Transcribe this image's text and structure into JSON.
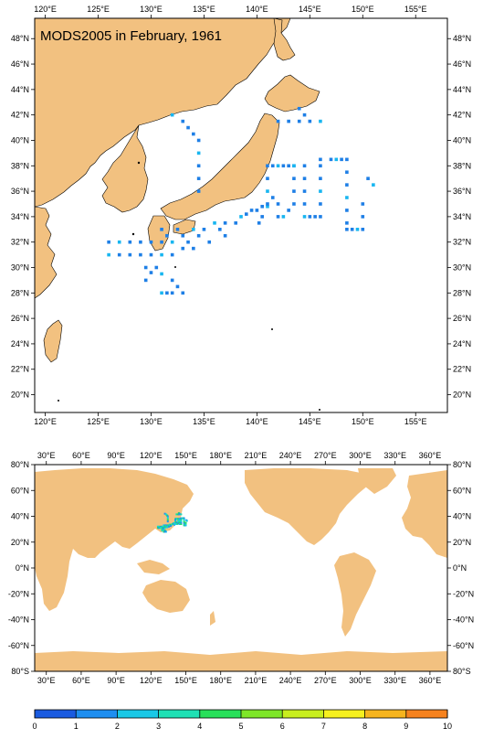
{
  "title": "MODS2005 in February, 1961",
  "colors": {
    "land": "#f2c180",
    "sea": "#ffffff",
    "frame": "#000000",
    "obs_primary": "#1e7fe6",
    "obs_secondary": "#18b6f0"
  },
  "top_map": {
    "lon_range": [
      119,
      158
    ],
    "lat_range": [
      18.6,
      49.6
    ],
    "x_ticks": [
      {
        "value": 120,
        "label": "120°E"
      },
      {
        "value": 125,
        "label": "125°E"
      },
      {
        "value": 130,
        "label": "130°E"
      },
      {
        "value": 135,
        "label": "135°E"
      },
      {
        "value": 140,
        "label": "140°E"
      },
      {
        "value": 145,
        "label": "145°E"
      },
      {
        "value": 150,
        "label": "150°E"
      },
      {
        "value": 155,
        "label": "155°E"
      }
    ],
    "y_ticks": [
      {
        "value": 20,
        "label": "20°N"
      },
      {
        "value": 22,
        "label": "22°N"
      },
      {
        "value": 24,
        "label": "24°N"
      },
      {
        "value": 26,
        "label": "26°N"
      },
      {
        "value": 28,
        "label": "28°N"
      },
      {
        "value": 30,
        "label": "30°N"
      },
      {
        "value": 32,
        "label": "32°N"
      },
      {
        "value": 34,
        "label": "34°N"
      },
      {
        "value": 36,
        "label": "36°N"
      },
      {
        "value": 38,
        "label": "38°N"
      },
      {
        "value": 40,
        "label": "40°N"
      },
      {
        "value": 42,
        "label": "42°N"
      },
      {
        "value": 44,
        "label": "44°N"
      },
      {
        "value": 46,
        "label": "46°N"
      },
      {
        "value": 48,
        "label": "48°N"
      }
    ]
  },
  "bottom_map": {
    "lon_range": [
      20,
      375
    ],
    "lat_range": [
      -80,
      80
    ],
    "x_ticks": [
      {
        "value": 30,
        "label": "30°E"
      },
      {
        "value": 60,
        "label": "60°E"
      },
      {
        "value": 90,
        "label": "90°E"
      },
      {
        "value": 120,
        "label": "120°E"
      },
      {
        "value": 150,
        "label": "150°E"
      },
      {
        "value": 180,
        "label": "180°E"
      },
      {
        "value": 210,
        "label": "210°E"
      },
      {
        "value": 240,
        "label": "240°E"
      },
      {
        "value": 270,
        "label": "270°E"
      },
      {
        "value": 300,
        "label": "300°E"
      },
      {
        "value": 330,
        "label": "330°E"
      },
      {
        "value": 360,
        "label": "360°E"
      }
    ],
    "y_ticks": [
      {
        "value": -80,
        "label": "80°S"
      },
      {
        "value": -60,
        "label": "-60°N"
      },
      {
        "value": -40,
        "label": "-40°N"
      },
      {
        "value": -20,
        "label": "-20°N"
      },
      {
        "value": 0,
        "label": "0°N"
      },
      {
        "value": 20,
        "label": "20°N"
      },
      {
        "value": 40,
        "label": "40°N"
      },
      {
        "value": 60,
        "label": "60°N"
      },
      {
        "value": 80,
        "label": "80°N"
      }
    ]
  },
  "colorbar": {
    "labels": [
      "0",
      "1",
      "2",
      "3",
      "4",
      "5",
      "6",
      "7",
      "8",
      "9",
      "10"
    ],
    "colors": [
      "#1a5be0",
      "#1e8ef0",
      "#19c8e6",
      "#1ee0b4",
      "#28e05a",
      "#7ee628",
      "#c8ee1e",
      "#f6f01e",
      "#f6b41e",
      "#f6821e"
    ]
  },
  "observations": [
    [
      132,
      42
    ],
    [
      133,
      41.5
    ],
    [
      133.5,
      41
    ],
    [
      134,
      40.5
    ],
    [
      134.5,
      40
    ],
    [
      134.5,
      39
    ],
    [
      134.5,
      38
    ],
    [
      134.5,
      37
    ],
    [
      134.5,
      36
    ],
    [
      126,
      32
    ],
    [
      127,
      32
    ],
    [
      128,
      32
    ],
    [
      129,
      32
    ],
    [
      130,
      32
    ],
    [
      131,
      32
    ],
    [
      126,
      31
    ],
    [
      127,
      31
    ],
    [
      128,
      31
    ],
    [
      129,
      31
    ],
    [
      130,
      31
    ],
    [
      131,
      31
    ],
    [
      132,
      31
    ],
    [
      129.5,
      30
    ],
    [
      130,
      29.6
    ],
    [
      130.5,
      30
    ],
    [
      131,
      29.5
    ],
    [
      129.5,
      29
    ],
    [
      132,
      29
    ],
    [
      132.5,
      28.5
    ],
    [
      133,
      28
    ],
    [
      131,
      28
    ],
    [
      131.5,
      28
    ],
    [
      132,
      28
    ],
    [
      131,
      33
    ],
    [
      131.5,
      32.5
    ],
    [
      132,
      32
    ],
    [
      132.5,
      33
    ],
    [
      133,
      32.5
    ],
    [
      133,
      31.5
    ],
    [
      133.5,
      32
    ],
    [
      134,
      33
    ],
    [
      134,
      31.5
    ],
    [
      134.5,
      32.5
    ],
    [
      135,
      33
    ],
    [
      135.5,
      32
    ],
    [
      136,
      33.5
    ],
    [
      136.5,
      33
    ],
    [
      137,
      33.5
    ],
    [
      137,
      32.5
    ],
    [
      138,
      33.5
    ],
    [
      138.5,
      34
    ],
    [
      139,
      34.2
    ],
    [
      139.5,
      34.5
    ],
    [
      140,
      34.5
    ],
    [
      140.5,
      34.8
    ],
    [
      141,
      34.8
    ],
    [
      140.2,
      33.5
    ],
    [
      140.5,
      34
    ],
    [
      141,
      38
    ],
    [
      141.5,
      38
    ],
    [
      142,
      38
    ],
    [
      142.5,
      38
    ],
    [
      143,
      38
    ],
    [
      143.5,
      38
    ],
    [
      141,
      37
    ],
    [
      141,
      36
    ],
    [
      141,
      35
    ],
    [
      141.5,
      35.5
    ],
    [
      142,
      35
    ],
    [
      142,
      34
    ],
    [
      142.5,
      34
    ],
    [
      143,
      34.5
    ],
    [
      143.5,
      35
    ],
    [
      143.5,
      36
    ],
    [
      143.5,
      37
    ],
    [
      143.5,
      38
    ],
    [
      144.5,
      38
    ],
    [
      144.5,
      37
    ],
    [
      144.5,
      36
    ],
    [
      144.5,
      35
    ],
    [
      144.5,
      34
    ],
    [
      145,
      34
    ],
    [
      145.5,
      34
    ],
    [
      146,
      34
    ],
    [
      146,
      35
    ],
    [
      146,
      36
    ],
    [
      146,
      37
    ],
    [
      146,
      38
    ],
    [
      146,
      38.5
    ],
    [
      147,
      38.5
    ],
    [
      147.5,
      38.5
    ],
    [
      148,
      38.5
    ],
    [
      148.5,
      38.5
    ],
    [
      148.5,
      37.5
    ],
    [
      148.5,
      36.5
    ],
    [
      148.5,
      35.5
    ],
    [
      148.5,
      34.5
    ],
    [
      148.5,
      33.5
    ],
    [
      148.5,
      33
    ],
    [
      149,
      33
    ],
    [
      149.5,
      33
    ],
    [
      150,
      33
    ],
    [
      150,
      34
    ],
    [
      150,
      35
    ],
    [
      150.5,
      37
    ],
    [
      151,
      36.5
    ],
    [
      142,
      41.5
    ],
    [
      143,
      41.5
    ],
    [
      144,
      41.5
    ],
    [
      145,
      41.5
    ],
    [
      146,
      41.5
    ],
    [
      144,
      42.5
    ],
    [
      144.5,
      42
    ]
  ]
}
